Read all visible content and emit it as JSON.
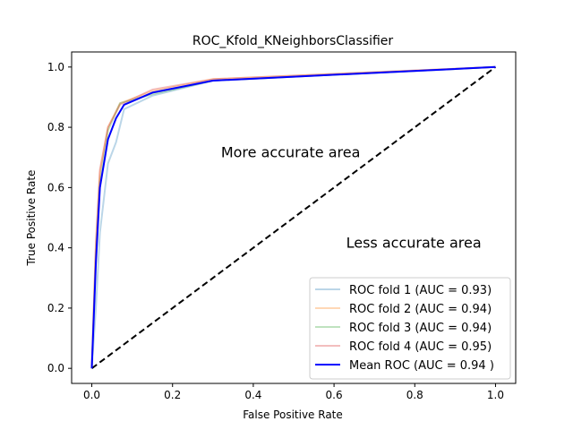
{
  "chart_data": {
    "type": "line",
    "title": "ROC_Kfold_KNeighborsClassifier",
    "xlabel": "False Positive Rate",
    "ylabel": "True Positive Rate",
    "xlim": [
      -0.05,
      1.05
    ],
    "ylim": [
      -0.05,
      1.05
    ],
    "xticks": [
      0.0,
      0.2,
      0.4,
      0.6,
      0.8,
      1.0
    ],
    "yticks": [
      0.0,
      0.2,
      0.4,
      0.6,
      0.8,
      1.0
    ],
    "xtick_labels": [
      "0.0",
      "0.2",
      "0.4",
      "0.6",
      "0.8",
      "1.0"
    ],
    "ytick_labels": [
      "0.0",
      "0.2",
      "0.4",
      "0.6",
      "0.8",
      "1.0"
    ],
    "grid": false,
    "legend_position": "lower-right",
    "annotations": [
      {
        "text": "More accurate area",
        "x": 0.32,
        "y": 0.7
      },
      {
        "text": "Less accurate area",
        "x": 0.63,
        "y": 0.4
      }
    ],
    "diagonal": {
      "x": [
        0,
        1
      ],
      "y": [
        0,
        1
      ],
      "color": "#000000",
      "style": "dashed"
    },
    "series": [
      {
        "name": "ROC fold 1 (AUC = 0.93)",
        "color": "#1f77b4",
        "opacity": 0.3,
        "x": [
          0,
          0.01,
          0.02,
          0.04,
          0.06,
          0.08,
          0.15,
          0.3,
          1.0
        ],
        "y": [
          0,
          0.2,
          0.45,
          0.68,
          0.75,
          0.86,
          0.905,
          0.955,
          1.0
        ]
      },
      {
        "name": "ROC fold 2 (AUC = 0.94)",
        "color": "#ff7f0e",
        "opacity": 0.3,
        "x": [
          0,
          0.01,
          0.02,
          0.04,
          0.07,
          0.15,
          0.3,
          1.0
        ],
        "y": [
          0,
          0.4,
          0.65,
          0.8,
          0.88,
          0.92,
          0.96,
          1.0
        ]
      },
      {
        "name": "ROC fold 3 (AUC = 0.94)",
        "color": "#2ca02c",
        "opacity": 0.3,
        "x": [
          0,
          0.01,
          0.02,
          0.04,
          0.07,
          0.15,
          0.3,
          1.0
        ],
        "y": [
          0,
          0.38,
          0.62,
          0.79,
          0.88,
          0.91,
          0.955,
          1.0
        ]
      },
      {
        "name": "ROC fold 4 (AUC = 0.95)",
        "color": "#d62728",
        "opacity": 0.3,
        "x": [
          0,
          0.01,
          0.02,
          0.04,
          0.07,
          0.15,
          0.3,
          1.0
        ],
        "y": [
          0,
          0.42,
          0.66,
          0.8,
          0.875,
          0.925,
          0.96,
          1.0
        ]
      },
      {
        "name": "Mean ROC (AUC = 0.94 )",
        "color": "#0000ff",
        "opacity": 1.0,
        "width": 2,
        "x": [
          0,
          0.01,
          0.02,
          0.04,
          0.06,
          0.08,
          0.15,
          0.3,
          1.0
        ],
        "y": [
          0,
          0.35,
          0.6,
          0.76,
          0.83,
          0.875,
          0.915,
          0.955,
          1.0
        ]
      }
    ]
  }
}
